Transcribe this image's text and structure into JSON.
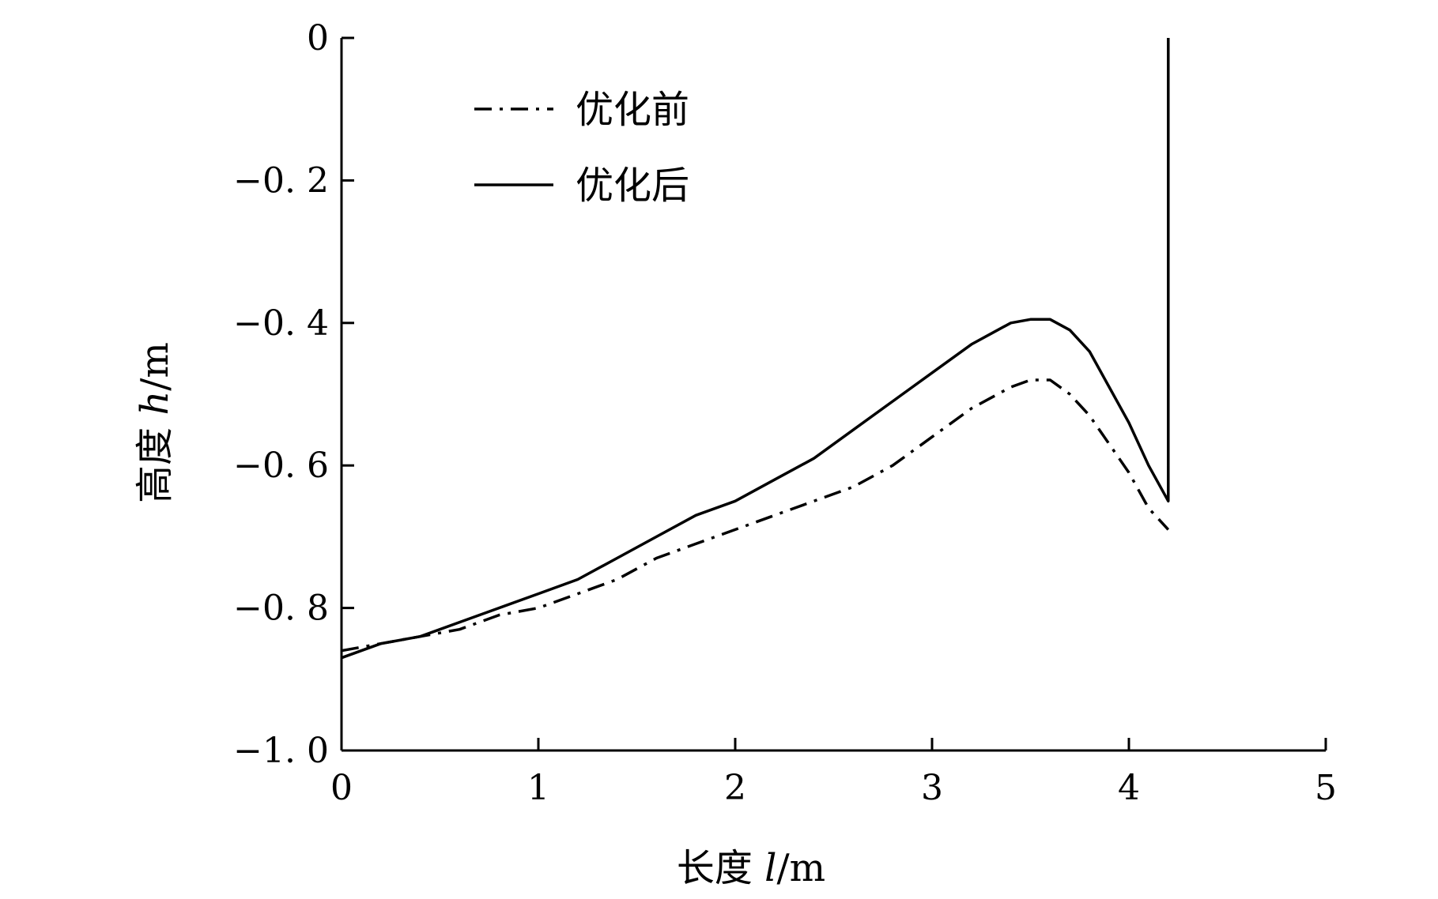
{
  "chart_data": {
    "type": "line",
    "xlabel": {
      "prefix": "长度 ",
      "var": "l",
      "unit": "/m"
    },
    "ylabel": {
      "prefix": "高度 ",
      "var": "h",
      "unit": "/m"
    },
    "xlim": [
      0,
      5
    ],
    "ylim": [
      -1.0,
      0
    ],
    "xticks": [
      0,
      1,
      2,
      3,
      4,
      5
    ],
    "xtick_labels": [
      "0",
      "1",
      "2",
      "3",
      "4",
      "5"
    ],
    "yticks": [
      0,
      -0.2,
      -0.4,
      -0.6,
      -0.8,
      -1.0
    ],
    "ytick_labels": [
      "0",
      "−0. 2",
      "−0. 4",
      "−0. 6",
      "−0. 8",
      "−1. 0"
    ],
    "grid": false,
    "legend_position": "top-left",
    "series": [
      {
        "name": "优化前",
        "style": "dash-dot",
        "x": [
          0,
          0.2,
          0.4,
          0.6,
          0.8,
          1.0,
          1.2,
          1.4,
          1.6,
          1.8,
          2.0,
          2.2,
          2.4,
          2.6,
          2.8,
          3.0,
          3.2,
          3.4,
          3.5,
          3.6,
          3.7,
          3.8,
          3.9,
          4.0,
          4.1,
          4.2
        ],
        "y": [
          -0.86,
          -0.85,
          -0.84,
          -0.83,
          -0.81,
          -0.8,
          -0.78,
          -0.76,
          -0.73,
          -0.71,
          -0.69,
          -0.67,
          -0.65,
          -0.63,
          -0.6,
          -0.56,
          -0.52,
          -0.49,
          -0.48,
          -0.48,
          -0.5,
          -0.53,
          -0.57,
          -0.61,
          -0.66,
          -0.69
        ]
      },
      {
        "name": "优化后",
        "style": "solid",
        "x": [
          0,
          0.2,
          0.4,
          0.6,
          0.8,
          1.0,
          1.2,
          1.4,
          1.6,
          1.8,
          2.0,
          2.2,
          2.4,
          2.6,
          2.8,
          3.0,
          3.2,
          3.3,
          3.4,
          3.5,
          3.6,
          3.7,
          3.8,
          3.9,
          4.0,
          4.1,
          4.2,
          4.2
        ],
        "y": [
          -0.87,
          -0.85,
          -0.84,
          -0.82,
          -0.8,
          -0.78,
          -0.76,
          -0.73,
          -0.7,
          -0.67,
          -0.65,
          -0.62,
          -0.59,
          -0.55,
          -0.51,
          -0.47,
          -0.43,
          -0.415,
          -0.4,
          -0.395,
          -0.395,
          -0.41,
          -0.44,
          -0.49,
          -0.54,
          -0.6,
          -0.65,
          0
        ]
      }
    ]
  }
}
